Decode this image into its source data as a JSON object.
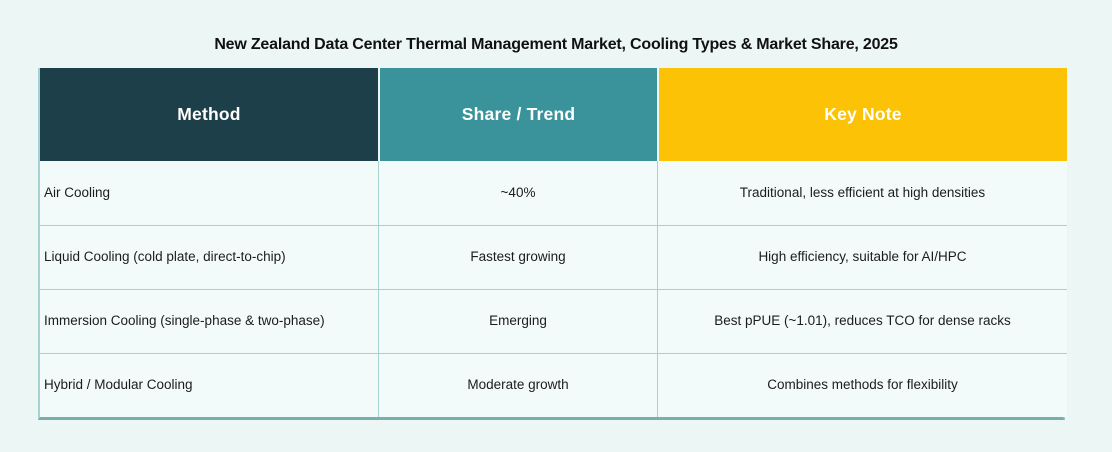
{
  "title": "New Zealand Data Center Thermal Management Market,  Cooling Types & Market Share, 2025",
  "table": {
    "columns": [
      {
        "label": "Method"
      },
      {
        "label": "Share / Trend"
      },
      {
        "label": "Key Note"
      }
    ],
    "rows": [
      {
        "method": "Air Cooling",
        "share": "~40%",
        "note": "Traditional, less efficient at high densities"
      },
      {
        "method": "Liquid Cooling (cold plate, direct-to-chip)",
        "share": "Fastest growing",
        "note": "High efficiency, suitable for AI/HPC"
      },
      {
        "method": "Immersion Cooling (single-phase & two-phase)",
        "share": "Emerging",
        "note": "Best pPUE (~1.01),  reduces TCO for dense racks"
      },
      {
        "method": "Hybrid / Modular Cooling",
        "share": "Moderate growth",
        "note": "Combines methods for flexibility"
      }
    ]
  },
  "colors": {
    "background": "#ecf6f4",
    "header_method": "#1c3f4a",
    "header_share": "#3a939b",
    "header_note": "#fcc306",
    "grid_border": "#a6d3d1",
    "bottom_border": "#74b0ae",
    "cell_background": "#f3fafa",
    "header_text": "#ffffff",
    "body_text": "#1c1c1c"
  },
  "chart_data": {
    "type": "table",
    "title": "New Zealand Data Center Thermal Management Market, Cooling Types & Market Share, 2025",
    "columns": [
      "Method",
      "Share / Trend",
      "Key Note"
    ],
    "rows": [
      [
        "Air Cooling",
        "~40%",
        "Traditional, less efficient at high densities"
      ],
      [
        "Liquid Cooling (cold plate, direct-to-chip)",
        "Fastest growing",
        "High efficiency, suitable for AI/HPC"
      ],
      [
        "Immersion Cooling (single-phase & two-phase)",
        "Emerging",
        "Best pPUE (~1.01), reduces TCO for dense racks"
      ],
      [
        "Hybrid / Modular Cooling",
        "Moderate growth",
        "Combines methods for flexibility"
      ]
    ]
  }
}
